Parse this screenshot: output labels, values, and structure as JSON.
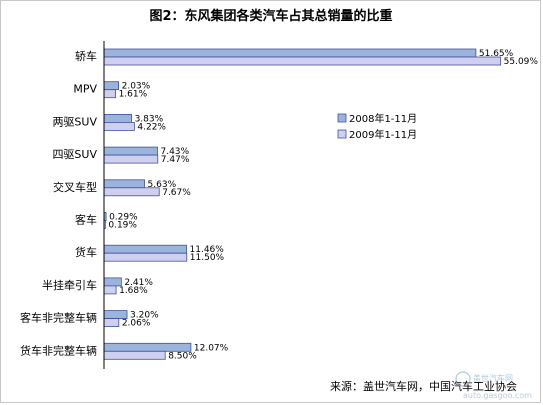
{
  "chart_data": {
    "type": "bar",
    "orientation": "horizontal",
    "title": "图2：东风集团各类汽车占其总销量的比重",
    "categories": [
      "轿车",
      "MPV",
      "两驱SUV",
      "四驱SUV",
      "交叉车型",
      "客车",
      "货车",
      "半挂牵引车",
      "客车非完整车辆",
      "货车非完整车辆"
    ],
    "series": [
      {
        "name": "2008年1-11月",
        "values": [
          51.65,
          2.03,
          3.83,
          7.43,
          5.63,
          0.29,
          11.46,
          2.41,
          3.2,
          12.07
        ],
        "labels": [
          "51.65%",
          "2.03%",
          "3.83%",
          "7.43%",
          "5.63%",
          "0.29%",
          "11.46%",
          "2.41%",
          "3.20%",
          "12.07%"
        ],
        "color": "#9ab4dc"
      },
      {
        "name": "2009年1-11月",
        "values": [
          55.09,
          1.61,
          4.22,
          7.47,
          7.67,
          0.19,
          11.5,
          1.68,
          2.06,
          8.5
        ],
        "labels": [
          "55.09%",
          "1.61%",
          "4.22%",
          "7.47%",
          "7.67%",
          "0.19%",
          "11.50%",
          "1.68%",
          "2.06%",
          "8.50%"
        ],
        "color": "#cfcff0"
      }
    ],
    "xlim": [
      0,
      60
    ],
    "grid": false,
    "legend_position": "right"
  },
  "source": "来源：盖世汽车网，中国汽车工业协会",
  "watermark": {
    "line1": "盖世汽车网",
    "line2": "auto.gasgoo.com"
  },
  "colors": {
    "bar_border": "#3f51a3",
    "axis": "#000000"
  }
}
